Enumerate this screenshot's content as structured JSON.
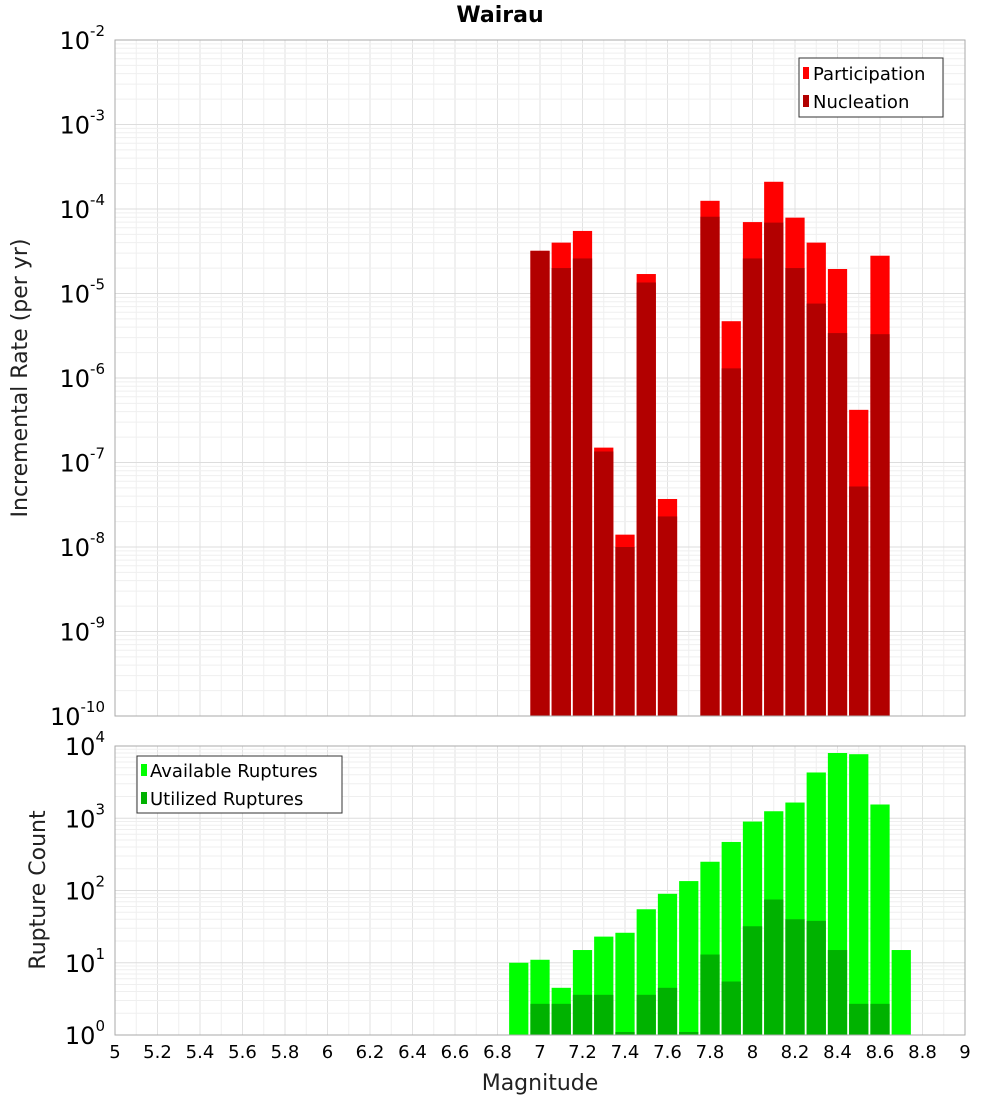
{
  "chart_data": [
    {
      "type": "bar",
      "title": "Wairau",
      "xlabel": "",
      "ylabel": "Incremental Rate (per yr)",
      "yscale": "log",
      "ylim": [
        1e-10,
        0.01
      ],
      "xlim": [
        5,
        9
      ],
      "grid": true,
      "legend": "top-right",
      "ytick_labels": [
        {
          "base": "10",
          "exp": "-10"
        },
        {
          "base": "10",
          "exp": "-9"
        },
        {
          "base": "10",
          "exp": "-8"
        },
        {
          "base": "10",
          "exp": "-7"
        },
        {
          "base": "10",
          "exp": "-6"
        },
        {
          "base": "10",
          "exp": "-5"
        },
        {
          "base": "10",
          "exp": "-4"
        },
        {
          "base": "10",
          "exp": "-3"
        },
        {
          "base": "10",
          "exp": "-2"
        }
      ],
      "x": [
        7.0,
        7.1,
        7.2,
        7.3,
        7.4,
        7.5,
        7.6,
        7.8,
        7.9,
        8.0,
        8.1,
        8.2,
        8.3,
        8.4,
        8.5,
        8.6
      ],
      "series": [
        {
          "name": "Participation",
          "color": "#ff0000",
          "values": [
            3.2e-05,
            4e-05,
            5.5e-05,
            1.5e-07,
            1.4e-08,
            1.7e-05,
            3.7e-08,
            0.000125,
            4.7e-06,
            7e-05,
            0.00021,
            7.9e-05,
            4e-05,
            1.95e-05,
            4.2e-07,
            2.8e-05
          ]
        },
        {
          "name": "Nucleation",
          "color": "#b20000",
          "values": [
            3.2e-05,
            2e-05,
            2.6e-05,
            1.35e-07,
            1e-08,
            1.35e-05,
            2.3e-08,
            8.1e-05,
            1.3e-06,
            2.6e-05,
            6.9e-05,
            2e-05,
            7.6e-06,
            3.4e-06,
            5.2e-08,
            3.3e-06
          ]
        }
      ]
    },
    {
      "type": "bar",
      "title": "",
      "xlabel": "Magnitude",
      "ylabel": "Rupture Count",
      "yscale": "log",
      "ylim": [
        1,
        10000
      ],
      "xlim": [
        5,
        9
      ],
      "grid": true,
      "legend": "top-left",
      "xticks": [
        "5",
        "5.2",
        "5.4",
        "5.6",
        "5.8",
        "6",
        "6.2",
        "6.4",
        "6.6",
        "6.8",
        "7",
        "7.2",
        "7.4",
        "7.6",
        "7.8",
        "8",
        "8.2",
        "8.4",
        "8.6",
        "8.8",
        "9"
      ],
      "ytick_labels": [
        {
          "base": "10",
          "exp": "0"
        },
        {
          "base": "10",
          "exp": "1"
        },
        {
          "base": "10",
          "exp": "2"
        },
        {
          "base": "10",
          "exp": "3"
        },
        {
          "base": "10",
          "exp": "4"
        }
      ],
      "x": [
        6.9,
        7.0,
        7.1,
        7.2,
        7.3,
        7.4,
        7.5,
        7.6,
        7.7,
        7.8,
        7.9,
        8.0,
        8.1,
        8.2,
        8.3,
        8.4,
        8.5,
        8.6,
        8.7
      ],
      "series": [
        {
          "name": "Available Ruptures",
          "color": "#00ff00",
          "values": [
            10,
            11,
            4.5,
            15,
            23,
            26,
            55,
            90,
            135,
            250,
            470,
            900,
            1250,
            1650,
            4300,
            8000,
            7700,
            1550,
            15
          ]
        },
        {
          "name": "Utilized Ruptures",
          "color": "#00b200",
          "values": [
            0,
            2.7,
            2.7,
            3.6,
            3.6,
            1.1,
            3.6,
            4.5,
            1.1,
            13,
            5.5,
            32,
            75,
            40,
            38,
            15,
            2.7,
            2.7,
            0
          ]
        }
      ]
    }
  ]
}
